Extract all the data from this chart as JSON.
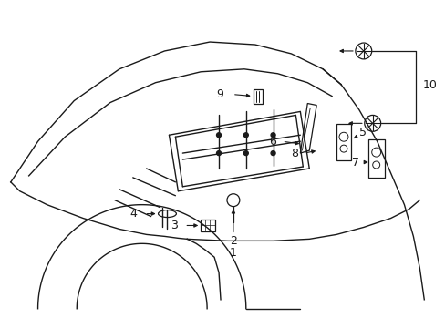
{
  "bg_color": "#ffffff",
  "line_color": "#1a1a1a",
  "figsize": [
    4.89,
    3.6
  ],
  "dpi": 100,
  "label_fs": 9
}
